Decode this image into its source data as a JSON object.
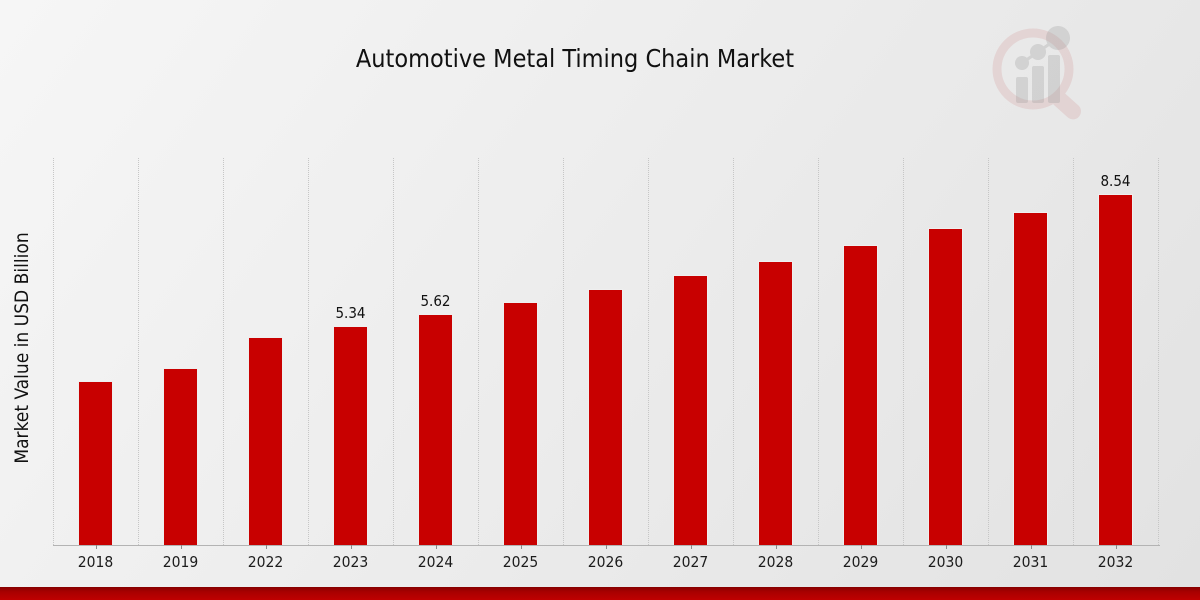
{
  "page": {
    "title": "Automotive Metal Timing Chain Market"
  },
  "chart_data": {
    "type": "bar",
    "title": "Automotive Metal Timing Chain Market",
    "xlabel": "",
    "ylabel": "Market Value in USD Billion",
    "categories": [
      "2018",
      "2019",
      "2022",
      "2023",
      "2024",
      "2025",
      "2026",
      "2027",
      "2028",
      "2029",
      "2030",
      "2031",
      "2032"
    ],
    "values": [
      4.0,
      4.31,
      5.06,
      5.34,
      5.62,
      5.93,
      6.24,
      6.58,
      6.93,
      7.31,
      7.73,
      8.1,
      8.54
    ],
    "data_labels": [
      "",
      "",
      "",
      "5.34",
      "5.62",
      "",
      "",
      "",
      "",
      "",
      "",
      "",
      "8.54"
    ],
    "ylim": [
      0,
      9.5
    ],
    "bar_color": "#c80000",
    "grid": "vertical-dotted",
    "legend": "none",
    "unit": "USD Billion"
  },
  "watermark": {
    "name": "market-research-future-logo",
    "ring_color": "#d98c8c",
    "bars_color": "#a9a9a9"
  },
  "footer": {
    "accent_color": "#b00000"
  }
}
